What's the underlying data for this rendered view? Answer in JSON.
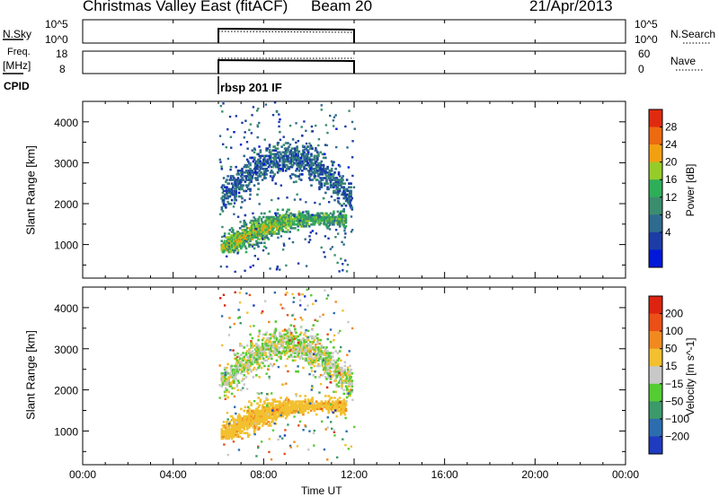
{
  "header": {
    "station": "Christmas Valley East (fitACF)",
    "beam": "Beam 20",
    "date": "21/Apr/2013"
  },
  "top_panels": {
    "nsky": {
      "label": "N.Sky",
      "ticks_left": [
        "10^5",
        "10^0"
      ],
      "ticks_right": [
        "10^5",
        "10^0"
      ],
      "right_label": "N.Search"
    },
    "freq": {
      "label": "Freq.",
      "unit": "[MHz]",
      "ticks_left": [
        "18",
        "8"
      ],
      "ticks_right": [
        "60",
        "0"
      ],
      "right_label": "Nave"
    },
    "cpid": {
      "label": "CPID",
      "mode": "rbsp 201 IF"
    }
  },
  "chart_data": [
    {
      "type": "heatmap",
      "panel": "power",
      "ylabel": "Slant Range [km]",
      "ylim": [
        180,
        4500
      ],
      "yticks": [
        1000,
        2000,
        3000,
        4000
      ],
      "xlim_hours": [
        0,
        24
      ],
      "colorbar": {
        "label": "Power [dB]",
        "ticks": [
          "28",
          "24",
          "20",
          "16",
          "12",
          "8",
          "4"
        ],
        "range": [
          0,
          32
        ],
        "colors": [
          "#0018d8",
          "#1c3ca6",
          "#2f6a8f",
          "#3b8d6f",
          "#2fae5a",
          "#96cc2a",
          "#f2a012",
          "#ee6a10",
          "#e02a10"
        ]
      },
      "data_time_range_hours": [
        6.0,
        12.0
      ],
      "echo_regions": [
        {
          "region": "near-range band",
          "t_start": 6.1,
          "t_end": 11.6,
          "range_km": [
            800,
            1800
          ],
          "typical_db": 14
        },
        {
          "region": "far-range arc",
          "t_start": 6.1,
          "t_end": 11.9,
          "range_km": [
            1800,
            3400
          ],
          "typical_db": 8
        }
      ]
    },
    {
      "type": "heatmap",
      "panel": "velocity",
      "ylabel": "Slant Range [km]",
      "ylim": [
        180,
        4500
      ],
      "yticks": [
        1000,
        2000,
        3000,
        4000
      ],
      "xlim_hours": [
        0,
        24
      ],
      "colorbar": {
        "label": "Velocity [m s^-1]",
        "ticks": [
          "200",
          "100",
          "50",
          "15",
          "−15",
          "−50",
          "−100",
          "−200"
        ],
        "range": [
          -250,
          250
        ],
        "colors": [
          "#1f3bc0",
          "#2c6db0",
          "#3c9a6a",
          "#55cc33",
          "#c8c8c8",
          "#f2c030",
          "#f08a20",
          "#ea5018",
          "#dc2410"
        ]
      },
      "data_time_range_hours": [
        6.0,
        12.0
      ],
      "echo_regions": [
        {
          "region": "near-range band",
          "t_start": 6.1,
          "t_end": 11.6,
          "range_km": [
            800,
            1800
          ],
          "typical_velocity": 60
        },
        {
          "region": "far-range arc",
          "t_start": 6.1,
          "t_end": 11.9,
          "range_km": [
            1800,
            3400
          ],
          "typical_velocity": -10
        }
      ]
    }
  ],
  "x_axis": {
    "tick_labels": [
      "00:00",
      "04:00",
      "08:00",
      "12:00",
      "16:00",
      "20:00",
      "00:00"
    ],
    "label": "Time UT"
  }
}
